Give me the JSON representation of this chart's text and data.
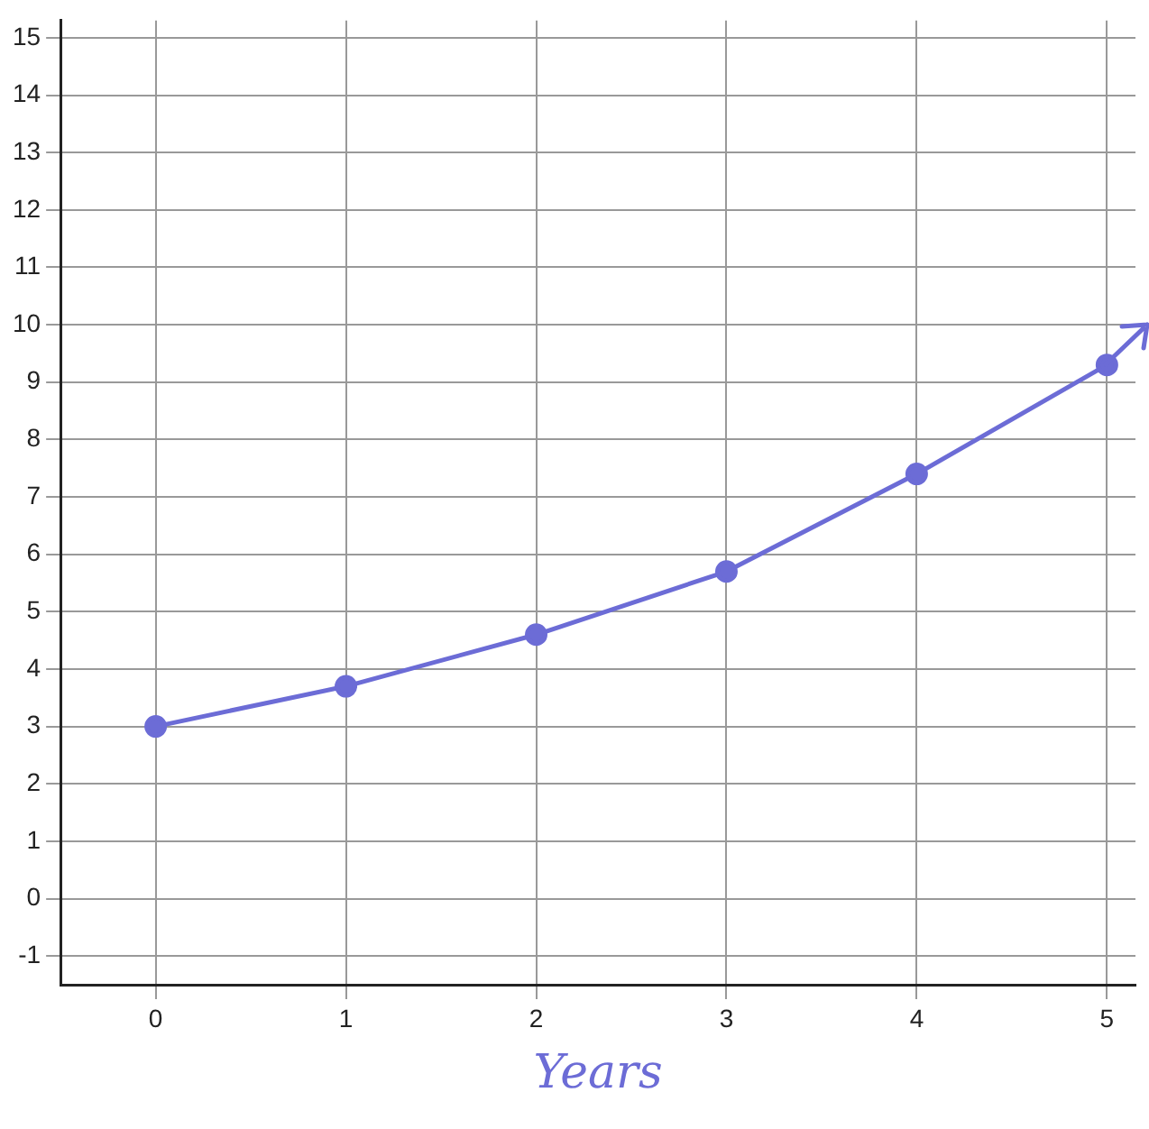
{
  "chart_data": {
    "type": "line",
    "xlabel": "Years",
    "x": [
      0,
      1,
      2,
      3,
      4,
      5
    ],
    "series": [
      {
        "color": "#6c6cd6",
        "values": [
          3,
          3.7,
          4.6,
          5.7,
          7.4,
          9.3
        ]
      }
    ],
    "xlim": [
      -0.5,
      5.15
    ],
    "ylim": [
      -1.5,
      15.3
    ],
    "xticks": [
      0,
      1,
      2,
      3,
      4,
      5
    ],
    "yticks": [
      -1,
      0,
      1,
      2,
      3,
      4,
      5,
      6,
      7,
      8,
      9,
      10,
      11,
      12,
      13,
      14,
      15
    ],
    "grid": true,
    "marker": "circle",
    "legend": false
  }
}
